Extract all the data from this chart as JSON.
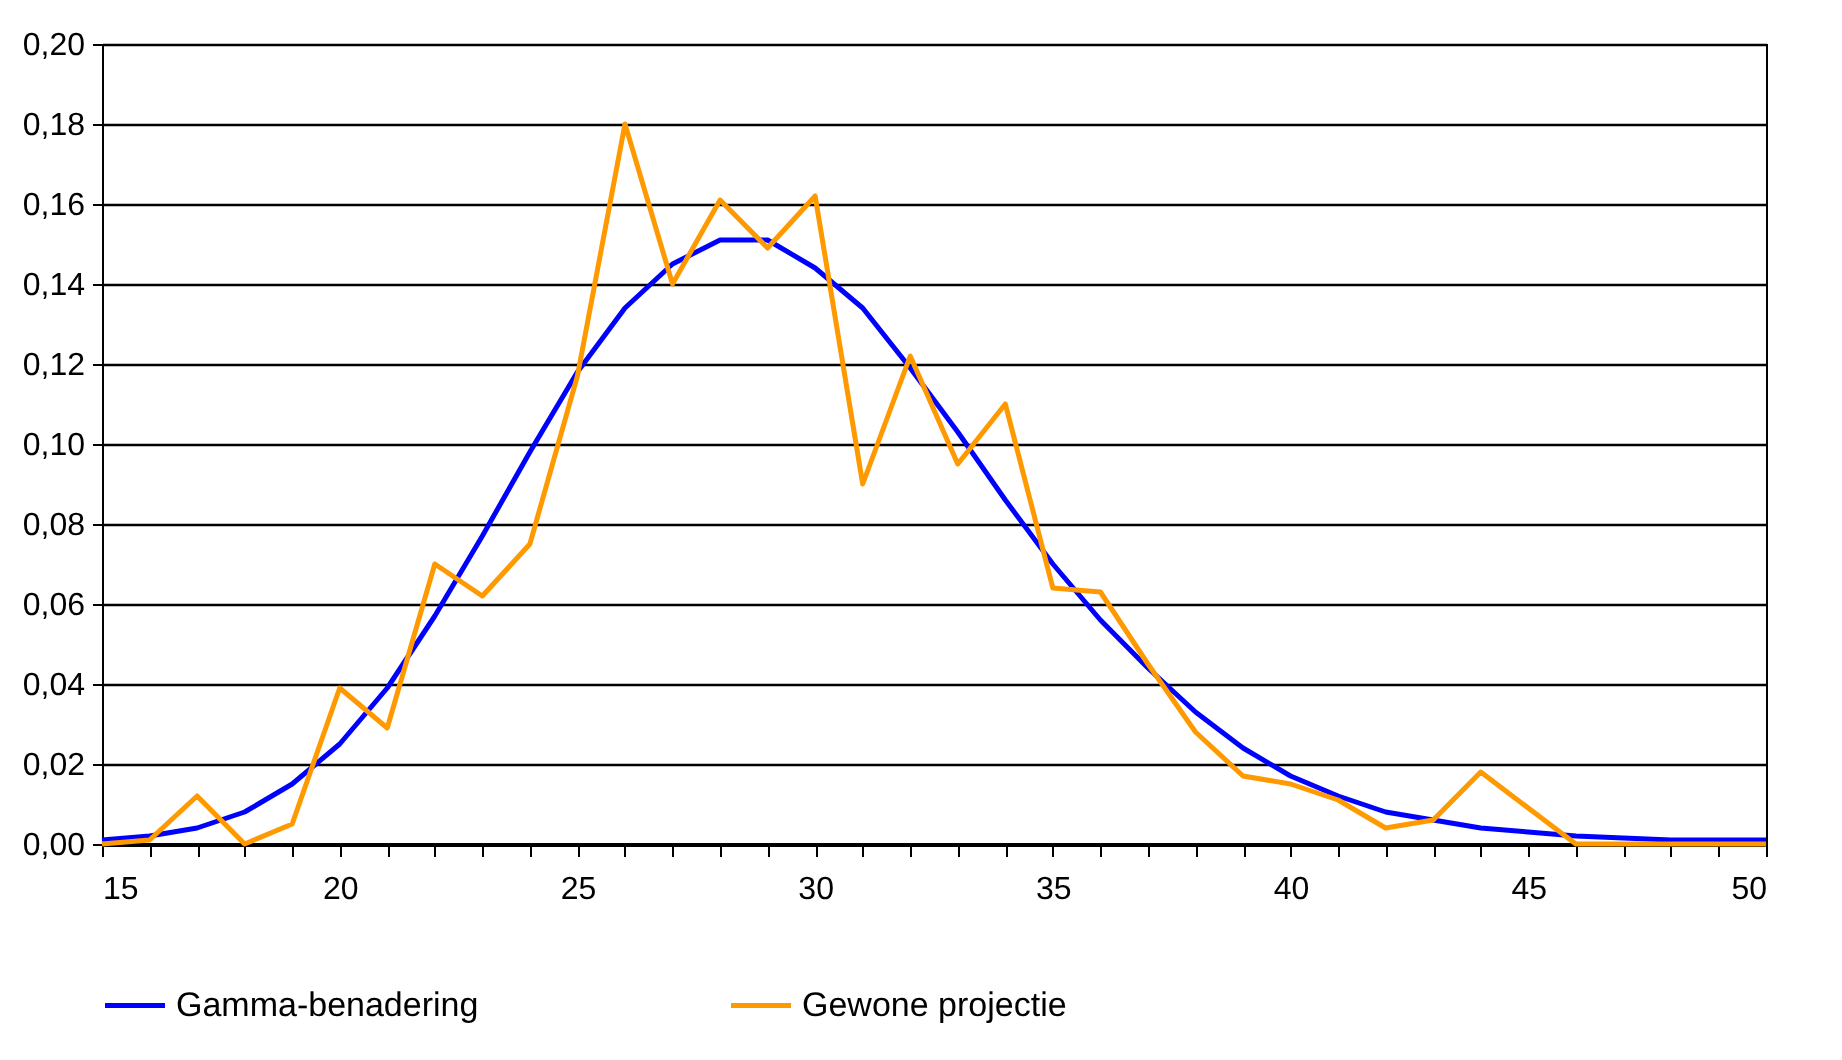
{
  "chart_data": {
    "type": "line",
    "x": [
      15,
      16,
      17,
      18,
      19,
      20,
      21,
      22,
      23,
      24,
      25,
      26,
      27,
      28,
      29,
      30,
      31,
      32,
      33,
      34,
      35,
      36,
      37,
      38,
      39,
      40,
      41,
      42,
      43,
      44,
      45,
      46,
      47,
      48,
      49,
      50
    ],
    "series": [
      {
        "name": "Gamma-benadering",
        "color": "#0000ff",
        "values": [
          0.001,
          0.002,
          0.004,
          0.008,
          0.015,
          0.025,
          0.039,
          0.057,
          0.077,
          0.098,
          0.118,
          0.134,
          0.145,
          0.151,
          0.151,
          0.144,
          0.134,
          0.119,
          0.103,
          0.086,
          0.07,
          0.056,
          0.044,
          0.033,
          0.024,
          0.017,
          0.012,
          0.008,
          0.006,
          0.004,
          0.003,
          0.002,
          0.0015,
          0.001,
          0.001,
          0.001
        ]
      },
      {
        "name": "Gewone projectie",
        "color": "#ff9900",
        "values": [
          0,
          0.001,
          0.012,
          0,
          0.005,
          0.039,
          0.029,
          0.07,
          0.062,
          0.075,
          0.117,
          0.18,
          0.14,
          0.161,
          0.149,
          0.162,
          0.09,
          0.122,
          0.095,
          0.11,
          0.064,
          0.063,
          0.045,
          0.028,
          0.017,
          0.015,
          0.011,
          0.004,
          0.006,
          0.018,
          0.009,
          0,
          0,
          0,
          0,
          0
        ]
      }
    ],
    "xlim": [
      15,
      50
    ],
    "xticks": [
      15,
      {
        "value": 16,
        "label": null
      },
      {
        "value": 17,
        "label": null
      },
      {
        "value": 18,
        "label": null
      },
      {
        "value": 19,
        "label": null
      },
      20,
      {
        "value": 21,
        "label": null
      },
      {
        "value": 22,
        "label": null
      },
      {
        "value": 23,
        "label": null
      },
      {
        "value": 24,
        "label": null
      },
      25,
      {
        "value": 26,
        "label": null
      },
      {
        "value": 27,
        "label": null
      },
      {
        "value": 28,
        "label": null
      },
      {
        "value": 29,
        "label": null
      },
      30,
      {
        "value": 31,
        "label": null
      },
      {
        "value": 32,
        "label": null
      },
      {
        "value": 33,
        "label": null
      },
      {
        "value": 34,
        "label": null
      },
      35,
      {
        "value": 36,
        "label": null
      },
      {
        "value": 37,
        "label": null
      },
      {
        "value": 38,
        "label": null
      },
      {
        "value": 39,
        "label": null
      },
      40,
      {
        "value": 41,
        "label": null
      },
      {
        "value": 42,
        "label": null
      },
      {
        "value": 43,
        "label": null
      },
      {
        "value": 44,
        "label": null
      },
      45,
      {
        "value": 46,
        "label": null
      },
      {
        "value": 47,
        "label": null
      },
      {
        "value": 48,
        "label": null
      },
      {
        "value": 49,
        "label": null
      },
      50
    ],
    "ylim": [
      0,
      0.2
    ],
    "yticks": [
      {
        "value": 0,
        "label": "0,00"
      },
      {
        "value": 0.02,
        "label": "0,02"
      },
      {
        "value": 0.04,
        "label": "0,04"
      },
      {
        "value": 0.06,
        "label": "0,06"
      },
      {
        "value": 0.08,
        "label": "0,08"
      },
      {
        "value": 0.1,
        "label": "0,10"
      },
      {
        "value": 0.12,
        "label": "0,12"
      },
      {
        "value": 0.14,
        "label": "0,14"
      },
      {
        "value": 0.16,
        "label": "0,16"
      },
      {
        "value": 0.18,
        "label": "0,18"
      },
      {
        "value": 0.2,
        "label": "0,20"
      }
    ],
    "grid": "y",
    "legend": "bottom",
    "marker": "none",
    "line_style": "solid"
  }
}
